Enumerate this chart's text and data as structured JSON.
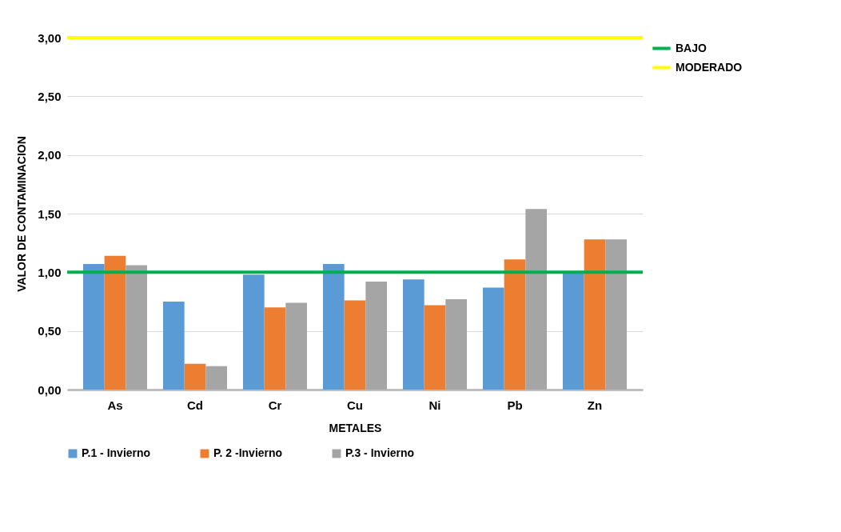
{
  "chart_data": {
    "type": "bar",
    "xlabel": "METALES",
    "ylabel": "VALOR DE CONTAMINACION",
    "categories": [
      "As",
      "Cd",
      "Cr",
      "Cu",
      "Ni",
      "Pb",
      "Zn"
    ],
    "series": [
      {
        "name": "P.1 - Invierno",
        "color": "#5b9bd5",
        "values": [
          1.07,
          0.75,
          0.98,
          1.07,
          0.94,
          0.87,
          1.01
        ]
      },
      {
        "name": "P. 2 -Invierno",
        "color": "#ed7d31",
        "values": [
          1.14,
          0.22,
          0.7,
          0.76,
          0.72,
          1.11,
          1.28
        ]
      },
      {
        "name": "P.3 - Invierno",
        "color": "#a5a5a5",
        "values": [
          1.06,
          0.2,
          0.74,
          0.92,
          0.77,
          1.54,
          1.28
        ]
      }
    ],
    "ref_lines": [
      {
        "axis": "y",
        "value": 1,
        "label": "BAJO",
        "color": "#00b050"
      },
      {
        "axis": "y",
        "value": 3,
        "label": "MODERADO",
        "color": "#ffff00"
      }
    ],
    "ylim": [
      0,
      3
    ],
    "yticks": [
      {
        "value": 0,
        "label": "0,00"
      },
      {
        "value": 0.5,
        "label": "0,50"
      },
      {
        "value": 1,
        "label": "1,00"
      },
      {
        "value": 1.5,
        "label": "1,50"
      },
      {
        "value": 2,
        "label": "2,00"
      },
      {
        "value": 2.5,
        "label": "2,50"
      },
      {
        "value": 3,
        "label": "3,00"
      }
    ],
    "grid": "y",
    "legend": "bottom"
  }
}
